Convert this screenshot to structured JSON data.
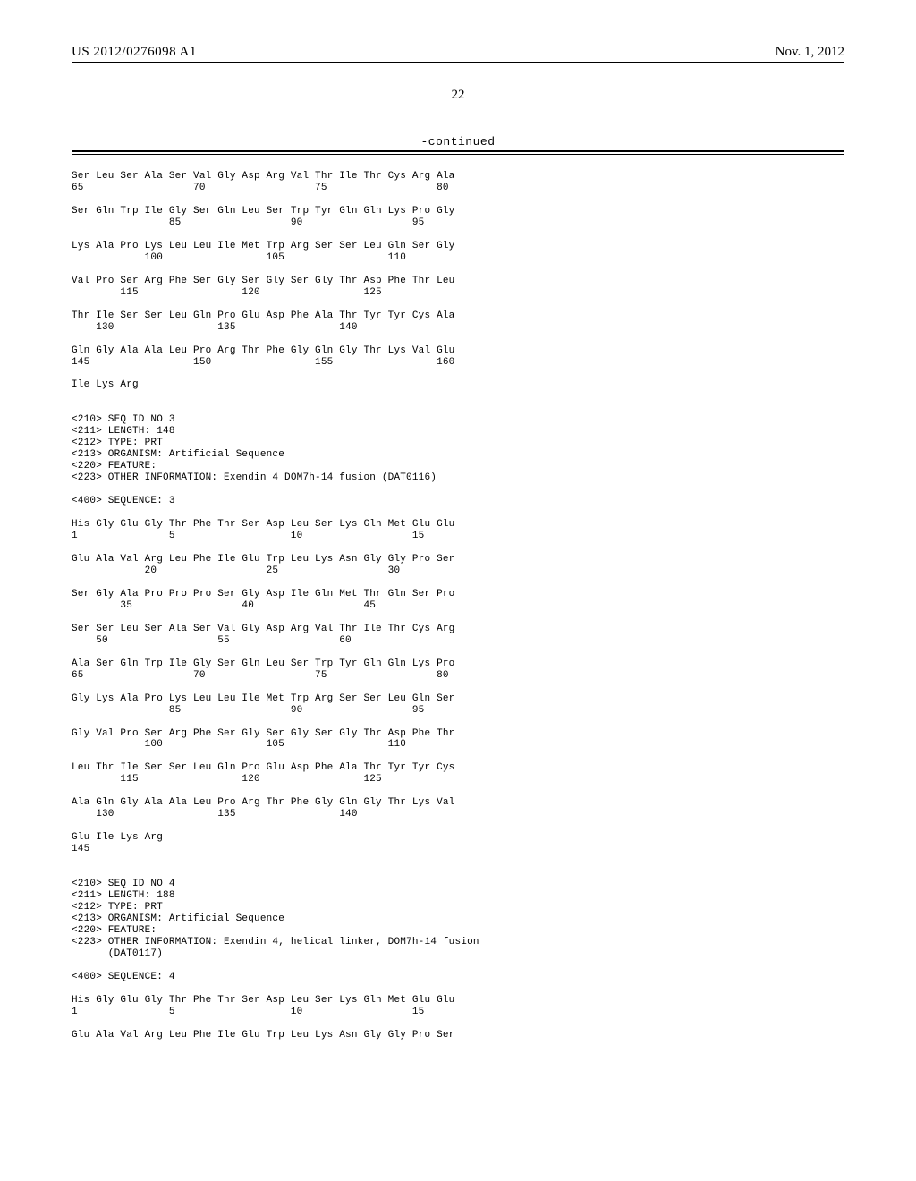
{
  "header": {
    "pub_no": "US 2012/0276098 A1",
    "pub_date": "Nov. 1, 2012"
  },
  "page_number": "22",
  "continued_label": "-continued",
  "sequence_text": "Ser Leu Ser Ala Ser Val Gly Asp Arg Val Thr Ile Thr Cys Arg Ala\n65                  70                  75                  80\n\nSer Gln Trp Ile Gly Ser Gln Leu Ser Trp Tyr Gln Gln Lys Pro Gly\n                85                  90                  95\n\nLys Ala Pro Lys Leu Leu Ile Met Trp Arg Ser Ser Leu Gln Ser Gly\n            100                 105                 110\n\nVal Pro Ser Arg Phe Ser Gly Ser Gly Ser Gly Thr Asp Phe Thr Leu\n        115                 120                 125\n\nThr Ile Ser Ser Leu Gln Pro Glu Asp Phe Ala Thr Tyr Tyr Cys Ala\n    130                 135                 140\n\nGln Gly Ala Ala Leu Pro Arg Thr Phe Gly Gln Gly Thr Lys Val Glu\n145                 150                 155                 160\n\nIle Lys Arg\n\n\n<210> SEQ ID NO 3\n<211> LENGTH: 148\n<212> TYPE: PRT\n<213> ORGANISM: Artificial Sequence\n<220> FEATURE:\n<223> OTHER INFORMATION: Exendin 4 DOM7h-14 fusion (DAT0116)\n\n<400> SEQUENCE: 3\n\nHis Gly Glu Gly Thr Phe Thr Ser Asp Leu Ser Lys Gln Met Glu Glu\n1               5                   10                  15\n\nGlu Ala Val Arg Leu Phe Ile Glu Trp Leu Lys Asn Gly Gly Pro Ser\n            20                  25                  30\n\nSer Gly Ala Pro Pro Pro Ser Gly Asp Ile Gln Met Thr Gln Ser Pro\n        35                  40                  45\n\nSer Ser Leu Ser Ala Ser Val Gly Asp Arg Val Thr Ile Thr Cys Arg\n    50                  55                  60\n\nAla Ser Gln Trp Ile Gly Ser Gln Leu Ser Trp Tyr Gln Gln Lys Pro\n65                  70                  75                  80\n\nGly Lys Ala Pro Lys Leu Leu Ile Met Trp Arg Ser Ser Leu Gln Ser\n                85                  90                  95\n\nGly Val Pro Ser Arg Phe Ser Gly Ser Gly Ser Gly Thr Asp Phe Thr\n            100                 105                 110\n\nLeu Thr Ile Ser Ser Leu Gln Pro Glu Asp Phe Ala Thr Tyr Tyr Cys\n        115                 120                 125\n\nAla Gln Gly Ala Ala Leu Pro Arg Thr Phe Gly Gln Gly Thr Lys Val\n    130                 135                 140\n\nGlu Ile Lys Arg\n145\n\n\n<210> SEQ ID NO 4\n<211> LENGTH: 188\n<212> TYPE: PRT\n<213> ORGANISM: Artificial Sequence\n<220> FEATURE:\n<223> OTHER INFORMATION: Exendin 4, helical linker, DOM7h-14 fusion\n      (DAT0117)\n\n<400> SEQUENCE: 4\n\nHis Gly Glu Gly Thr Phe Thr Ser Asp Leu Ser Lys Gln Met Glu Glu\n1               5                   10                  15\n\nGlu Ala Val Arg Leu Phe Ile Glu Trp Leu Lys Asn Gly Gly Pro Ser"
}
